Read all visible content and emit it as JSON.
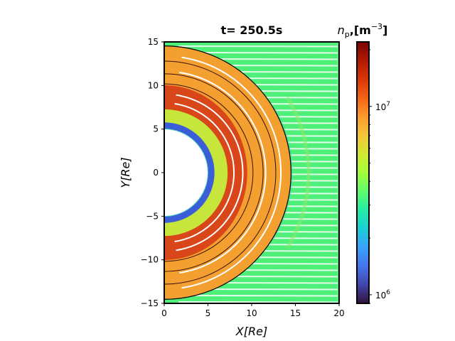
{
  "chart_data": {
    "type": "heatmap",
    "title": "t= 250.5s",
    "xlabel": "X[Re]",
    "ylabel": "Y[Re]",
    "xlim": [
      0,
      20
    ],
    "ylim": [
      -15,
      15
    ],
    "x_ticks": [
      0,
      5,
      10,
      15,
      20
    ],
    "y_ticks": [
      -15,
      -10,
      -5,
      0,
      5,
      10,
      15
    ],
    "inner_boundary_radius": 5,
    "shock_radius": 14.5,
    "magnetopause_radius": 10,
    "colorbar": {
      "label_symbol": "n",
      "label_subscript": "p",
      "label_units": ",[m",
      "label_exponent": "−3",
      "label_close": "]",
      "scale": "log",
      "range": [
        900000,
        22000000
      ],
      "major_ticks": [
        1000000,
        10000000
      ],
      "major_tick_labels": [
        "10",
        "10"
      ],
      "major_tick_exponents": [
        "6",
        "7"
      ],
      "colormap": "turbo"
    },
    "background_color": "#4ef07a"
  }
}
